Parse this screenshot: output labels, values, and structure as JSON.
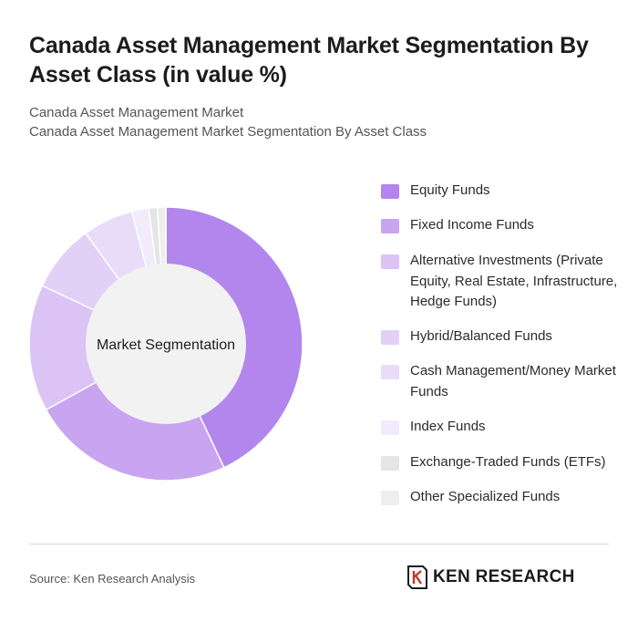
{
  "header": {
    "title": "Canada Asset Management Market Segmentation By Asset Class (in value %)",
    "subtitle_line1": "Canada Asset Management Market",
    "subtitle_line2": "Canada Asset Management Market Segmentation By Asset Class"
  },
  "chart_data": {
    "type": "pie",
    "style": "donut",
    "title": "Canada Asset Management Market Segmentation By Asset Class (in value %)",
    "center_label": "Market Segmentation",
    "legend_placement": "right",
    "categories": [
      "Equity Funds",
      "Fixed Income Funds",
      "Alternative Investments (Private Equity, Real Estate, Infrastructure, Hedge Funds)",
      "Hybrid/Balanced Funds",
      "Cash Management/Money Market Funds",
      "Index Funds",
      "Exchange-Traded Funds (ETFs)",
      "Other Specialized Funds"
    ],
    "values": [
      43,
      24,
      15,
      8,
      6,
      2,
      1,
      1
    ],
    "colors": [
      "#b286ec",
      "#c8a4f1",
      "#dbc3f6",
      "#e3d0f7",
      "#e9dcf9",
      "#f1ebfc",
      "#e5e5e5",
      "#eeeeee"
    ]
  },
  "footer": {
    "source": "Source: Ken Research Analysis",
    "logo_text": "KEN RESEARCH",
    "logo_icon": "ken-research-logo-icon"
  }
}
